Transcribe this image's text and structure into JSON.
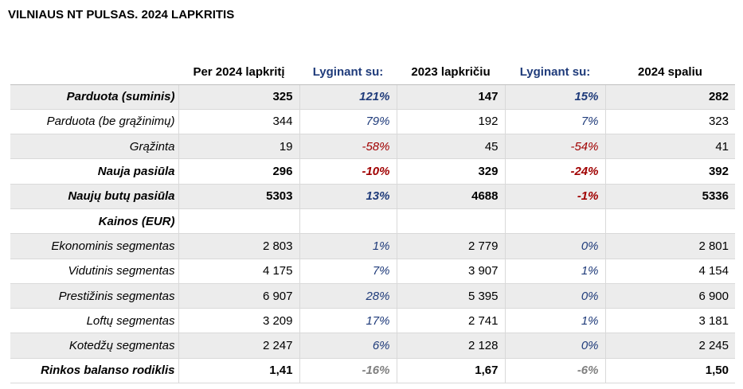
{
  "title": "VILNIAUS NT PULSAS. 2024 LAPKRITIS",
  "headers": [
    "",
    "Per 2024 lapkritį",
    "Lyginant su:",
    "2023 lapkričiu",
    "Lyginant su:",
    "2024 spaliu"
  ],
  "rows": [
    {
      "label": "Parduota (suminis)",
      "bold": true,
      "shade": true,
      "v1": "325",
      "p1": "121%",
      "p1c": "pos",
      "v2": "147",
      "p2": "15%",
      "p2c": "pos",
      "v3": "282"
    },
    {
      "label": "Parduota (be grąžinimų)",
      "bold": false,
      "shade": false,
      "v1": "344",
      "p1": "79%",
      "p1c": "pos",
      "v2": "192",
      "p2": "7%",
      "p2c": "pos",
      "v3": "323"
    },
    {
      "label": "Grąžinta",
      "bold": false,
      "shade": true,
      "v1": "19",
      "p1": "-58%",
      "p1c": "neg",
      "v2": "45",
      "p2": "-54%",
      "p2c": "neg",
      "v3": "41"
    },
    {
      "label": "Nauja pasiūla",
      "bold": true,
      "shade": false,
      "v1": "296",
      "p1": "-10%",
      "p1c": "neg",
      "v2": "329",
      "p2": "-24%",
      "p2c": "neg",
      "v3": "392"
    },
    {
      "label": "Naujų butų pasiūla",
      "bold": true,
      "shade": true,
      "v1": "5303",
      "p1": "13%",
      "p1c": "pos",
      "v2": "4688",
      "p2": "-1%",
      "p2c": "neg",
      "v3": "5336"
    },
    {
      "label": "Kainos (EUR)",
      "bold": true,
      "shade": false,
      "v1": "",
      "p1": "",
      "p1c": "pos",
      "v2": "",
      "p2": "",
      "p2c": "pos",
      "v3": ""
    },
    {
      "label": "Ekonominis segmentas",
      "bold": false,
      "shade": true,
      "v1": "2 803",
      "p1": "1%",
      "p1c": "pos",
      "v2": "2 779",
      "p2": "0%",
      "p2c": "pos",
      "v3": "2 801"
    },
    {
      "label": "Vidutinis segmentas",
      "bold": false,
      "shade": false,
      "v1": "4 175",
      "p1": "7%",
      "p1c": "pos",
      "v2": "3 907",
      "p2": "1%",
      "p2c": "pos",
      "v3": "4 154"
    },
    {
      "label": "Prestižinis segmentas",
      "bold": false,
      "shade": true,
      "v1": "6 907",
      "p1": "28%",
      "p1c": "pos",
      "v2": "5 395",
      "p2": "0%",
      "p2c": "pos",
      "v3": "6 900"
    },
    {
      "label": "Loftų segmentas",
      "bold": false,
      "shade": false,
      "v1": "3 209",
      "p1": "17%",
      "p1c": "pos",
      "v2": "2 741",
      "p2": "1%",
      "p2c": "pos",
      "v3": "3 181"
    },
    {
      "label": "Kotedžų segmentas",
      "bold": false,
      "shade": true,
      "v1": "2 247",
      "p1": "6%",
      "p1c": "pos",
      "v2": "2 128",
      "p2": "0%",
      "p2c": "pos",
      "v3": "2 245"
    },
    {
      "label": "Rinkos balanso rodiklis",
      "bold": true,
      "shade": false,
      "v1": "1,41",
      "p1": "-16%",
      "p1c": "grey",
      "v2": "1,67",
      "p2": "-6%",
      "p2c": "grey",
      "v3": "1,50"
    }
  ]
}
